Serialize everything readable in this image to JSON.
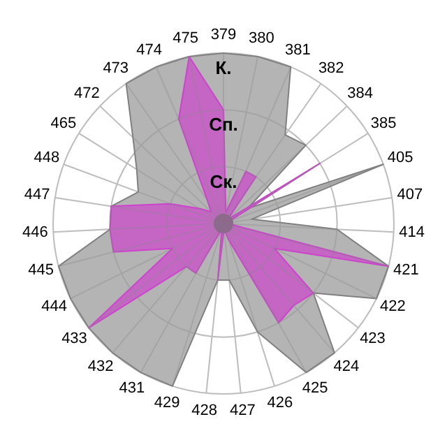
{
  "chart_data": {
    "type": "radar",
    "categories": [
      "379",
      "380",
      "381",
      "382",
      "384",
      "385",
      "405",
      "407",
      "414",
      "421",
      "422",
      "423",
      "424",
      "425",
      "426",
      "427",
      "428",
      "429",
      "431",
      "432",
      "433",
      "444",
      "445",
      "446",
      "447",
      "448",
      "465",
      "472",
      "473",
      "474",
      "475"
    ],
    "series": [
      {
        "color": "#b4b4b4",
        "values": [
          3,
          3,
          3,
          1.9,
          2,
          0.5,
          3,
          0.5,
          2,
          3,
          3,
          2,
          3,
          3,
          2,
          1,
          1,
          3,
          3,
          3,
          3,
          3,
          3,
          2,
          2,
          1.6,
          1.8,
          2.2,
          3,
          3,
          3
        ]
      },
      {
        "color": "#cc44cc",
        "values": [
          2,
          0.2,
          1,
          1,
          0.1,
          2,
          0.1,
          0.1,
          0.1,
          3,
          1,
          2,
          1.9,
          2,
          0.3,
          0.1,
          1,
          0.1,
          1,
          1,
          3,
          1,
          2,
          2,
          2,
          1,
          0.5,
          0.3,
          0.5,
          2,
          3
        ]
      }
    ],
    "ylim": [
      0,
      3
    ],
    "yticks": [
      {
        "value": 1,
        "label": "Ск."
      },
      {
        "value": 2,
        "label": "Сп."
      },
      {
        "value": 3,
        "label": "К."
      }
    ],
    "grid": true
  }
}
